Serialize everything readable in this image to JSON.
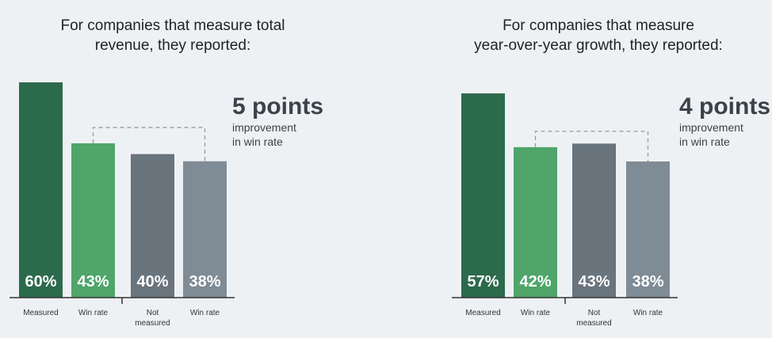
{
  "colors": {
    "measured": "#2c6a4c",
    "measured_win": "#4fa56a",
    "not_measured": "#69747d",
    "not_measured_win": "#7f8b95",
    "label": "#ffffff",
    "dash": "#999999",
    "axis": "#333333"
  },
  "chart_data": [
    {
      "type": "bar",
      "title": "For companies that measure total\nrevenue, they reported:",
      "categories": [
        "Measured",
        "Win rate",
        "Not\nmeasured",
        "Win rate"
      ],
      "values": [
        60,
        43,
        40,
        38
      ],
      "data_labels": [
        "60%",
        "43%",
        "40%",
        "38%"
      ],
      "ylim": [
        0,
        64
      ],
      "callout": {
        "points": "5 points",
        "line1": "improvement",
        "line2": "in win rate"
      }
    },
    {
      "type": "bar",
      "title": "For companies that measure\nyear-over-year growth, they reported:",
      "categories": [
        "Measured",
        "Win rate",
        "Not\nmeasured",
        "Win rate"
      ],
      "values": [
        57,
        42,
        43,
        38
      ],
      "data_labels": [
        "57%",
        "42%",
        "43%",
        "38%"
      ],
      "ylim": [
        0,
        61
      ],
      "callout": {
        "points": "4 points",
        "line1": "improvement",
        "line2": "in win rate"
      }
    }
  ]
}
